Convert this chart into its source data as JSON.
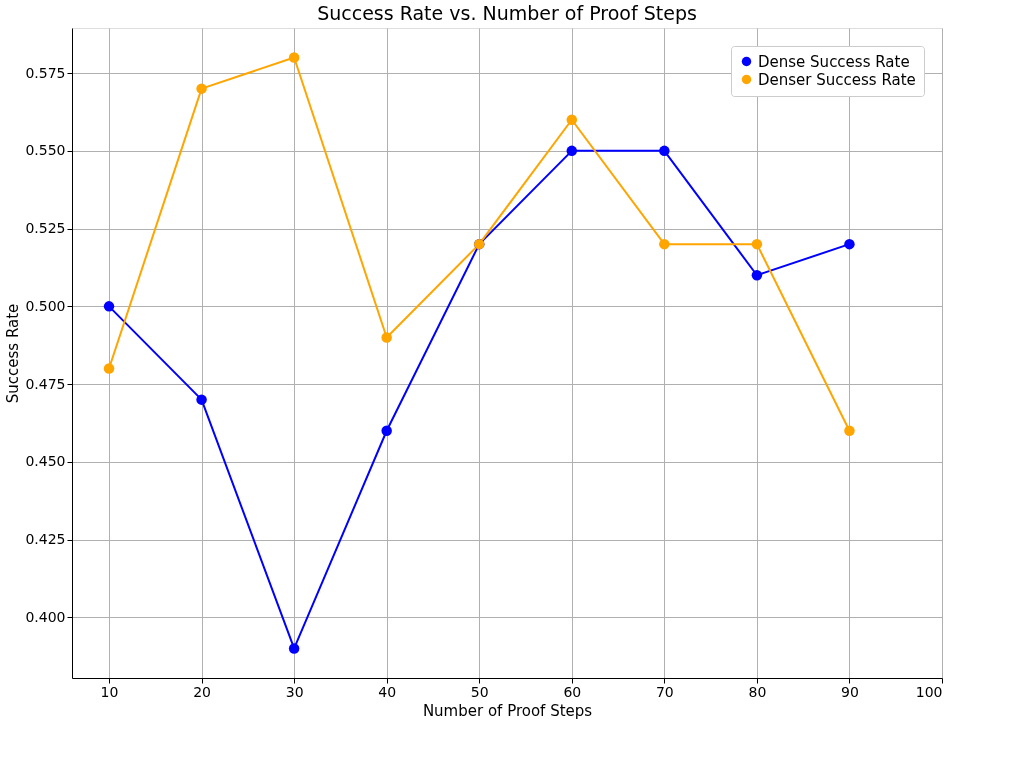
{
  "chart_data": {
    "type": "line",
    "title": "Success Rate vs. Number of Proof Steps",
    "xlabel": "Number of Proof Steps",
    "ylabel": "Success Rate",
    "x": [
      10,
      20,
      30,
      40,
      50,
      60,
      70,
      80,
      90
    ],
    "series": [
      {
        "name": "Dense Success Rate",
        "color": "#0000ff",
        "values": [
          0.5,
          0.47,
          0.39,
          0.46,
          0.52,
          0.55,
          0.55,
          0.51,
          0.52
        ]
      },
      {
        "name": "Denser Success Rate",
        "color": "#ffa500",
        "values": [
          0.48,
          0.57,
          0.58,
          0.49,
          0.52,
          0.56,
          0.52,
          0.52,
          0.46
        ]
      }
    ],
    "xlim": [
      6,
      100
    ],
    "xticks": [
      10,
      20,
      30,
      40,
      50,
      60,
      70,
      80,
      90,
      100
    ],
    "ylim": [
      0.3805,
      0.5895
    ],
    "yticks": [
      {
        "value": 0.4,
        "label": "0.400"
      },
      0.425,
      {
        "value": 0.45,
        "label": "0.450"
      },
      0.475,
      {
        "value": 0.5,
        "label": "0.500"
      },
      0.525,
      {
        "value": 0.55,
        "label": "0.550"
      },
      0.575
    ],
    "grid": true,
    "legend": "top right",
    "marker": "circle",
    "line_style": "solid"
  }
}
